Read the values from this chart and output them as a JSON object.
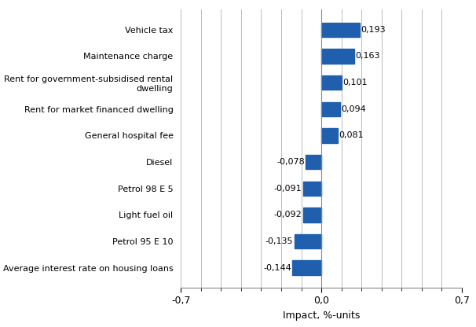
{
  "categories": [
    "Average interest rate on housing loans",
    "Petrol 95 E 10",
    "Light fuel oil",
    "Petrol 98 E 5",
    "Diesel",
    "General hospital fee",
    "Rent for market financed dwelling",
    "Rent for government-subsidised rental\ndwelling",
    "Maintenance charge",
    "Vehicle tax"
  ],
  "values": [
    -0.144,
    -0.135,
    -0.092,
    -0.091,
    -0.078,
    0.081,
    0.094,
    0.101,
    0.163,
    0.193
  ],
  "labels": [
    "-0,144",
    "-0,135",
    "-0,092",
    "-0,091",
    "-0,078",
    "0,081",
    "0,094",
    "0,101",
    "0,163",
    "0,193"
  ],
  "bar_color": "#1F5FAD",
  "xlim": [
    -0.7,
    0.7
  ],
  "xticks_major": [
    -0.7,
    0.0,
    0.7
  ],
  "xtick_major_labels": [
    "-0,7",
    "0,0",
    "0,7"
  ],
  "xticks_minor": [
    -0.6,
    -0.5,
    -0.4,
    -0.3,
    -0.2,
    -0.1,
    0.1,
    0.2,
    0.3,
    0.4,
    0.5,
    0.6
  ],
  "xlabel": "Impact, %-units",
  "bar_height": 0.55,
  "label_fontsize": 8,
  "axis_fontsize": 9,
  "background_color": "#ffffff",
  "grid_color": "#bbbbbb"
}
